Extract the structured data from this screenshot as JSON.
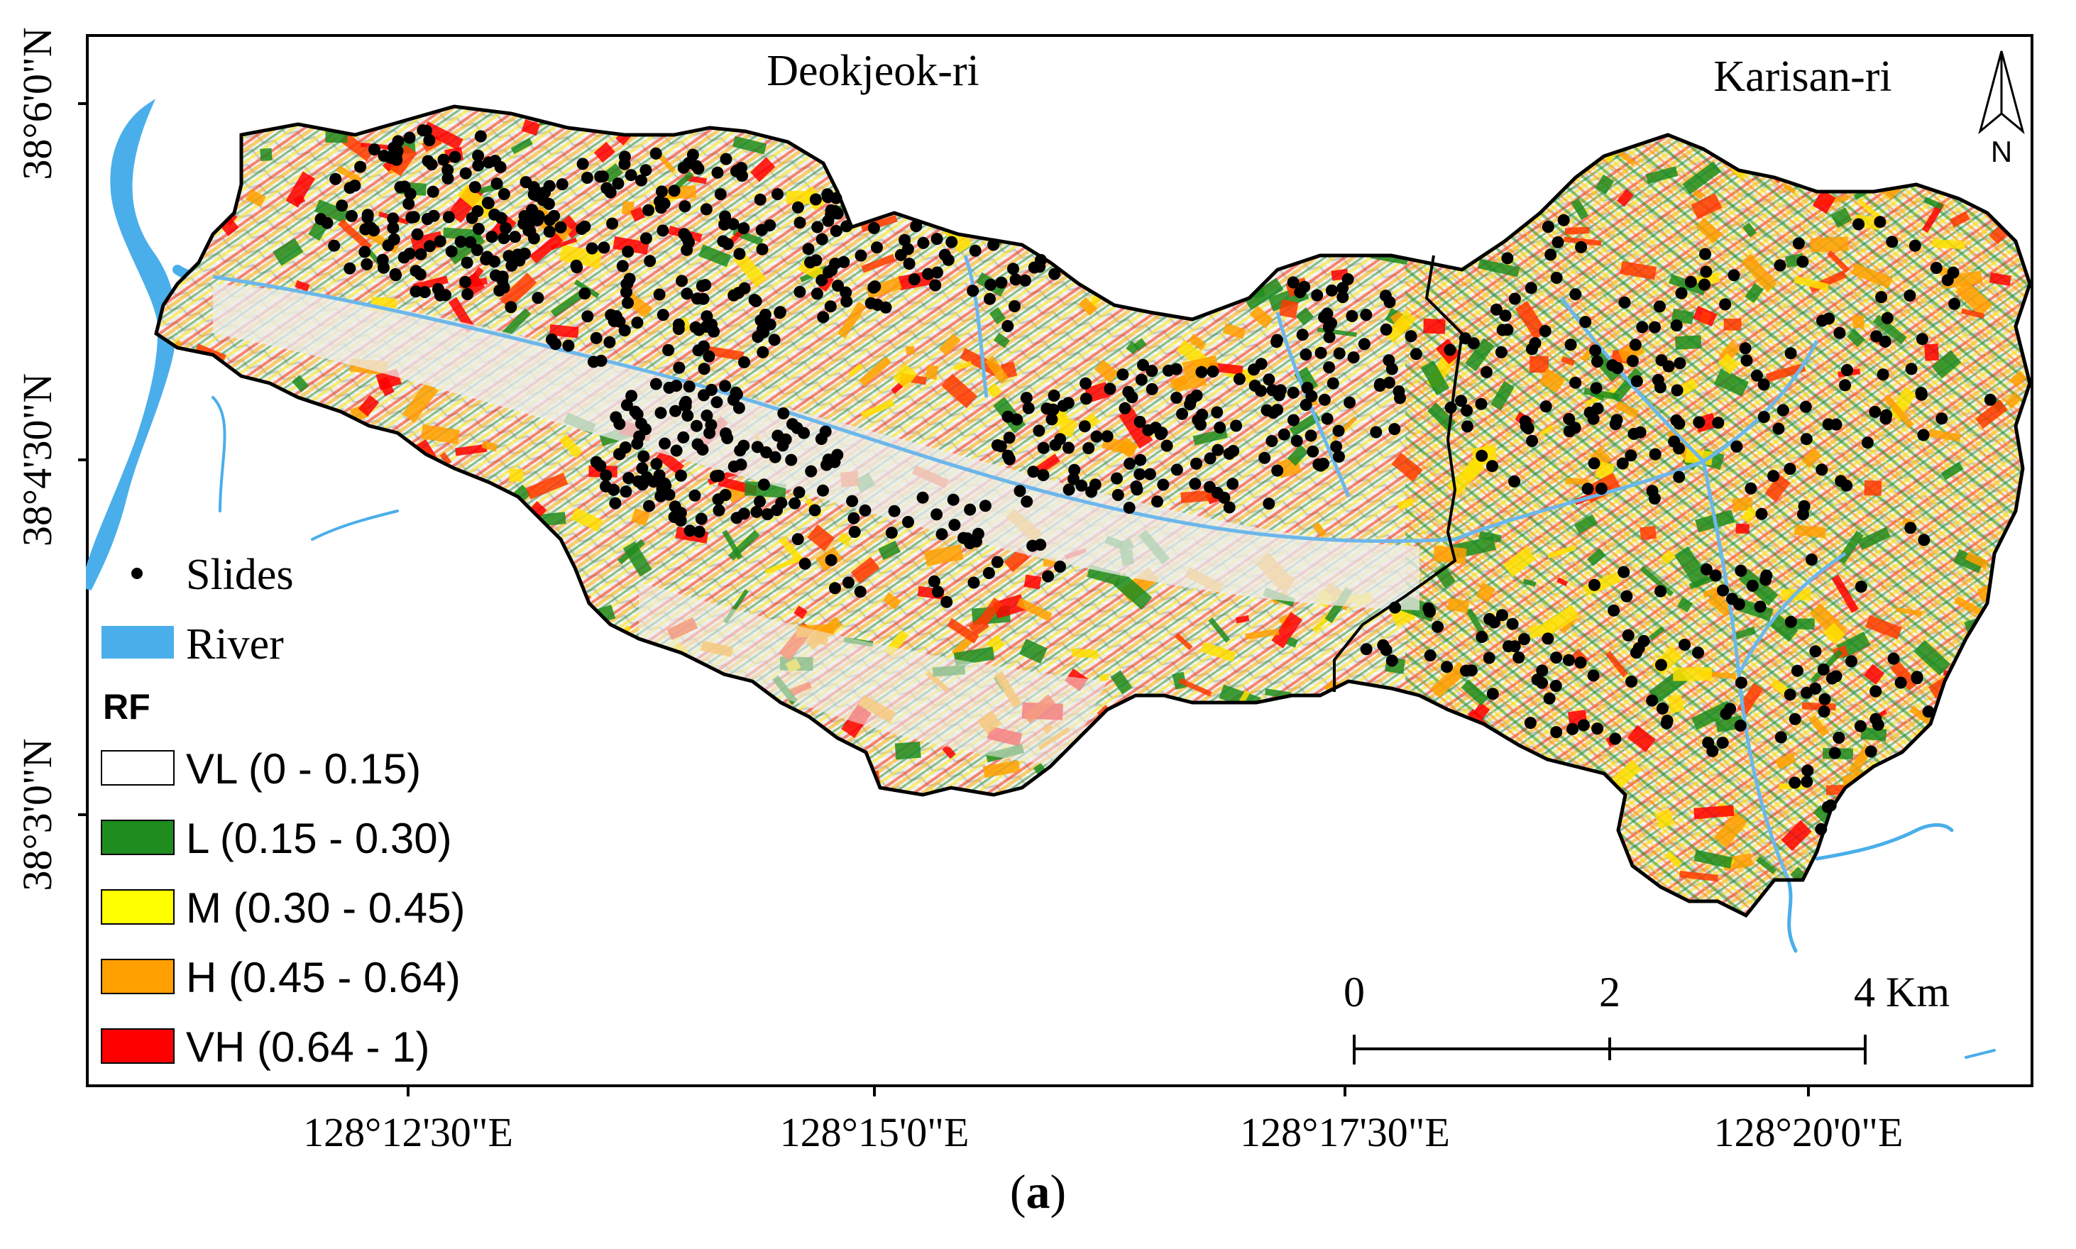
{
  "map": {
    "region_labels": [
      "Deokjeok-ri",
      "Karisan-ri"
    ],
    "north_arrow": {
      "icon": "north-arrow-icon",
      "label": "N"
    },
    "lat_ticks": [
      "38°6'0\"N",
      "38°4'30\"N",
      "38°3'0\"N"
    ],
    "lon_ticks": [
      "128°12'30\"E",
      "128°15'0\"E",
      "128°17'30\"E",
      "128°20'0\"E"
    ],
    "scale_bar": {
      "labels": [
        "0",
        "2",
        "4 Km"
      ]
    }
  },
  "legend": {
    "slides_label": "Slides",
    "river_label": "River",
    "title": "RF",
    "classes": [
      {
        "label": "VL (0 - 0.15)",
        "color": "#ffffff"
      },
      {
        "label": "L (0.15 - 0.30)",
        "color": "#1e8c1e"
      },
      {
        "label": "M (0.30 - 0.45)",
        "color": "#ffff00"
      },
      {
        "label": "H (0.45 - 0.64)",
        "color": "#ffa000"
      },
      {
        "label": "VH (0.64 - 1)",
        "color": "#ff0000"
      }
    ]
  },
  "colors": {
    "river": "#4aaeea",
    "relief": "#e6e6e6",
    "frame": "#000000",
    "slide": "#000000"
  },
  "caption": {
    "open": "(",
    "letter": "a",
    "close": ")"
  }
}
